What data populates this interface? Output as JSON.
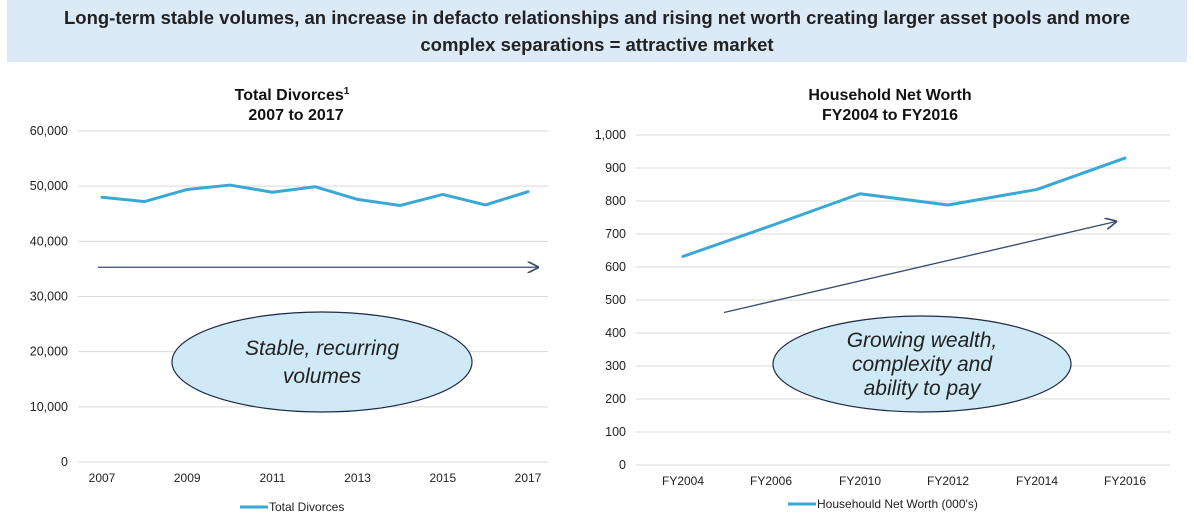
{
  "banner": {
    "line1": "Long-term stable volumes, an increase in defacto relationships and rising net worth creating larger asset pools and more",
    "line2": "complex separations = attractive market"
  },
  "chart_data": [
    {
      "type": "line",
      "title": "Total Divorces",
      "title_superscript": "1",
      "subtitle": "2007 to 2017",
      "x": [
        2007,
        2008,
        2009,
        2010,
        2011,
        2012,
        2013,
        2014,
        2015,
        2016,
        2017
      ],
      "x_tick_labels": [
        "2007",
        "2009",
        "2011",
        "2013",
        "2015",
        "2017"
      ],
      "y_tick_labels": [
        "60,000",
        "50,000",
        "40,000",
        "30,000",
        "20,000",
        "10,000",
        "0"
      ],
      "ylim": [
        0,
        60000
      ],
      "series": [
        {
          "name": "Total Divorces",
          "values": [
            48000,
            47200,
            49400,
            50200,
            48900,
            49900,
            47600,
            46500,
            48500,
            46600,
            49000
          ]
        }
      ],
      "trend_arrow": {
        "from": [
          2007,
          35300
        ],
        "to": [
          2017,
          35300
        ]
      },
      "callout": [
        "Stable, recurring",
        "volumes"
      ],
      "grid": true,
      "legend_position": "bottom",
      "colors": {
        "series": "#3aa8d6",
        "arrow": "#3a4a6b",
        "callout_fill": "#cfeaf6"
      }
    },
    {
      "type": "line",
      "title": "Household Net Worth",
      "subtitle": "FY2004 to FY2016",
      "x": [
        "FY2004",
        "FY2006",
        "FY2010",
        "FY2012",
        "FY2014",
        "FY2016"
      ],
      "x_tick_labels": [
        "FY2004",
        "FY2006",
        "FY2010",
        "FY2012",
        "FY2014",
        "FY2016"
      ],
      "y_tick_labels": [
        "1,000",
        "900",
        "800",
        "700",
        "600",
        "500",
        "400",
        "300",
        "200",
        "100",
        "0"
      ],
      "ylim": [
        0,
        1000
      ],
      "series": [
        {
          "name": "Househould Net Worth (000's)",
          "values": [
            632,
            725,
            822,
            788,
            835,
            930
          ]
        }
      ],
      "trend_arrow": {
        "from": [
          "FY2004",
          462
        ],
        "to": [
          "FY2016",
          738
        ]
      },
      "callout": [
        "Growing wealth,",
        "complexity and",
        "ability to pay"
      ],
      "grid": true,
      "legend_position": "bottom",
      "colors": {
        "series": "#3aa8d6",
        "arrow": "#3a4a6b",
        "callout_fill": "#cfeaf6"
      }
    }
  ]
}
